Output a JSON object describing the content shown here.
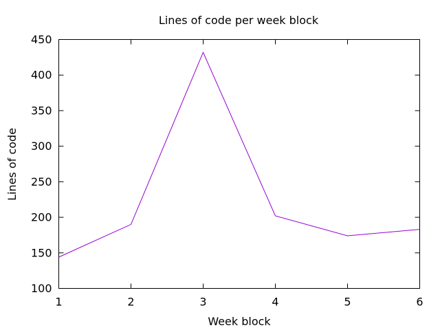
{
  "chart_data": {
    "type": "line",
    "title": "Lines of code per week block",
    "xlabel": "Week block",
    "ylabel": "Lines of code",
    "x": [
      1,
      2,
      3,
      4,
      5,
      6
    ],
    "series": [
      {
        "values": [
          144,
          190,
          432,
          202,
          174,
          183
        ],
        "color": "#9400d3"
      }
    ],
    "xlim": [
      1,
      6
    ],
    "ylim": [
      100,
      450
    ],
    "xticks": [
      "1",
      "2",
      "3",
      "4",
      "5",
      "6"
    ],
    "yticks": [
      "100",
      "150",
      "200",
      "250",
      "300",
      "350",
      "400",
      "450"
    ],
    "grid": false,
    "legend": "none"
  }
}
